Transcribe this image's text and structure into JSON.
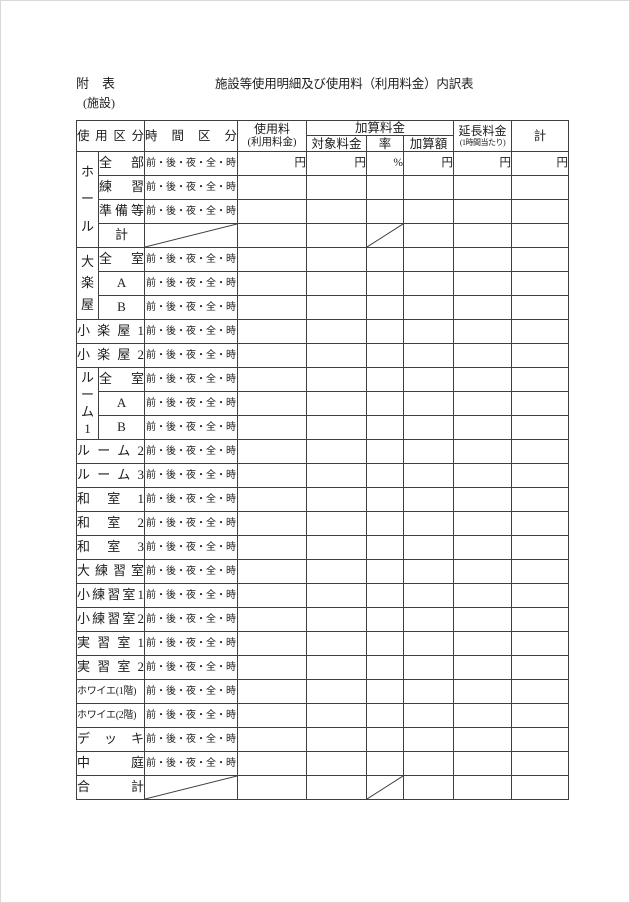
{
  "page": {
    "annex_label": "附　表",
    "title": "施設等使用明細及び使用料（利用料金）内訳表",
    "subtitle": "(施設)"
  },
  "table": {
    "header": {
      "usage": "使用区分",
      "time": "時間区分",
      "fee_line1": "使用料",
      "fee_line2": "(利用料金)",
      "surcharge": "加算料金",
      "surcharge_target": "対象料金",
      "surcharge_rate": "率",
      "surcharge_amount": "加算額",
      "extension_line1": "延長料金",
      "extension_line2": "(1時間当たり)",
      "total": "計"
    },
    "time_slots": "前・後・夜・全・時",
    "units": {
      "fee": "円",
      "target": "円",
      "rate": "%",
      "amount": "円",
      "extension": "円",
      "total": "円"
    },
    "rows": [
      {
        "group": "ホール",
        "name": "全部"
      },
      {
        "name": "練習"
      },
      {
        "name": "準備等"
      },
      {
        "name": "計"
      },
      {
        "group": "大楽屋",
        "name": "全室"
      },
      {
        "name": "A"
      },
      {
        "name": "B"
      },
      {
        "name": "小楽屋1"
      },
      {
        "name": "小楽屋2"
      },
      {
        "group": "ルーム1",
        "name": "全室"
      },
      {
        "name": "A"
      },
      {
        "name": "B"
      },
      {
        "name": "ルーム2"
      },
      {
        "name": "ルーム3"
      },
      {
        "name": "和室1"
      },
      {
        "name": "和室2"
      },
      {
        "name": "和室3"
      },
      {
        "name": "大練習室"
      },
      {
        "name": "小練習室1"
      },
      {
        "name": "小練習室2"
      },
      {
        "name": "実習室1"
      },
      {
        "name": "実習室2"
      },
      {
        "name": "ホワイエ(1階)"
      },
      {
        "name": "ホワイエ(2階)"
      },
      {
        "name": "デッキ"
      },
      {
        "name": "中庭"
      },
      {
        "name": "合計"
      }
    ]
  }
}
